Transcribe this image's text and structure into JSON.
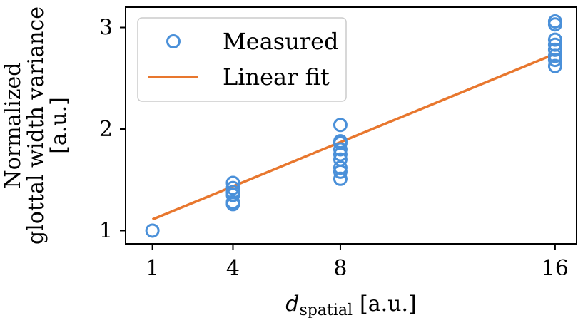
{
  "chart_data": {
    "type": "scatter",
    "title": "",
    "xlabel": {
      "main": "d",
      "subscript": "spatial",
      "unit": "[a.u.]"
    },
    "ylabel": {
      "lines": [
        "Normalized",
        "glottal width variance",
        "[a.u.]"
      ]
    },
    "xlim": [
      0.0,
      16.8
    ],
    "ylim": [
      0.87,
      3.2
    ],
    "xticks": [
      1,
      4,
      8,
      16
    ],
    "yticks": [
      1,
      2,
      3
    ],
    "xtick_labels": [
      "1",
      "4",
      "8",
      "16"
    ],
    "ytick_labels": [
      "1",
      "2",
      "3"
    ],
    "grid": false,
    "legend_position": "top-left",
    "series": [
      {
        "name": "Measured",
        "kind": "scatter",
        "marker": "open-circle",
        "color": "#4a90d9",
        "points": [
          [
            1,
            1.0
          ],
          [
            4,
            1.26
          ],
          [
            4,
            1.28
          ],
          [
            4,
            1.35
          ],
          [
            4,
            1.38
          ],
          [
            4,
            1.42
          ],
          [
            4,
            1.47
          ],
          [
            8,
            1.51
          ],
          [
            8,
            1.58
          ],
          [
            8,
            1.62
          ],
          [
            8,
            1.7
          ],
          [
            8,
            1.75
          ],
          [
            8,
            1.8
          ],
          [
            8,
            1.86
          ],
          [
            8,
            1.88
          ],
          [
            8,
            2.04
          ],
          [
            16,
            2.62
          ],
          [
            16,
            2.68
          ],
          [
            16,
            2.72
          ],
          [
            16,
            2.78
          ],
          [
            16,
            2.83
          ],
          [
            16,
            2.88
          ],
          [
            16,
            3.03
          ],
          [
            16,
            3.06
          ]
        ]
      },
      {
        "name": "Linear fit",
        "kind": "line",
        "color": "#e8772e",
        "points": [
          [
            1,
            1.11
          ],
          [
            16,
            2.74
          ]
        ]
      }
    ]
  }
}
